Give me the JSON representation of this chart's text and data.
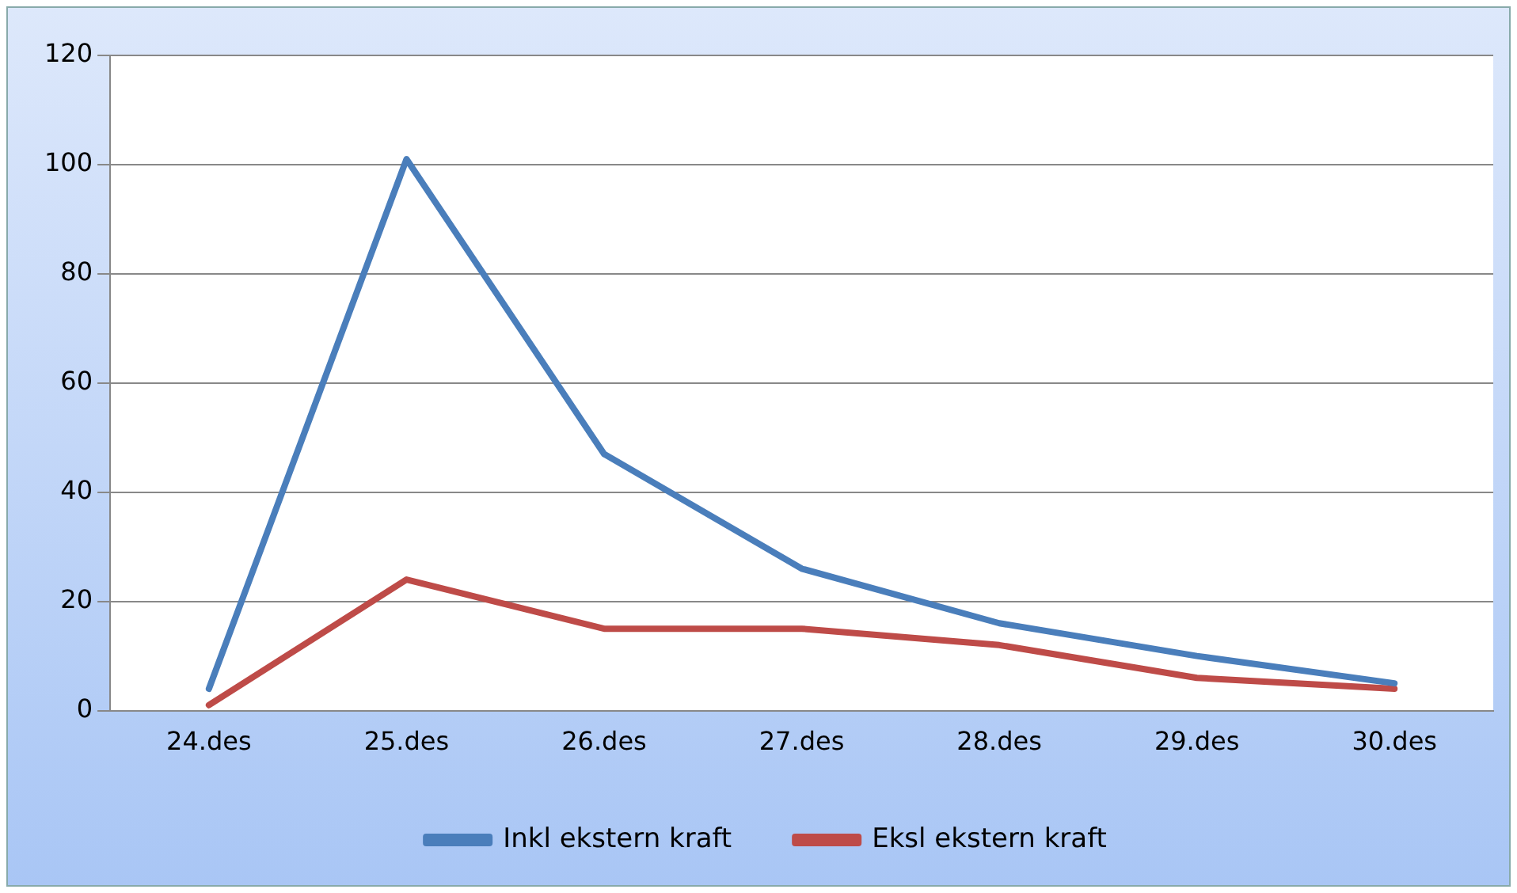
{
  "chart_data": {
    "type": "line",
    "categories": [
      "24.des",
      "25.des",
      "26.des",
      "27.des",
      "28.des",
      "29.des",
      "30.des"
    ],
    "series": [
      {
        "name": "Inkl ekstern kraft",
        "color": "#4a7ebb",
        "values": [
          4,
          101,
          47,
          26,
          16,
          10,
          5
        ]
      },
      {
        "name": "Eksl ekstern kraft",
        "color": "#be4b48",
        "values": [
          1,
          24,
          15,
          15,
          12,
          6,
          4
        ]
      }
    ],
    "ylim": [
      0,
      120
    ],
    "yticks": [
      0,
      20,
      40,
      60,
      80,
      100,
      120
    ],
    "grid": "y",
    "legend": "bottom",
    "marker": "none",
    "line_style": "solid"
  }
}
